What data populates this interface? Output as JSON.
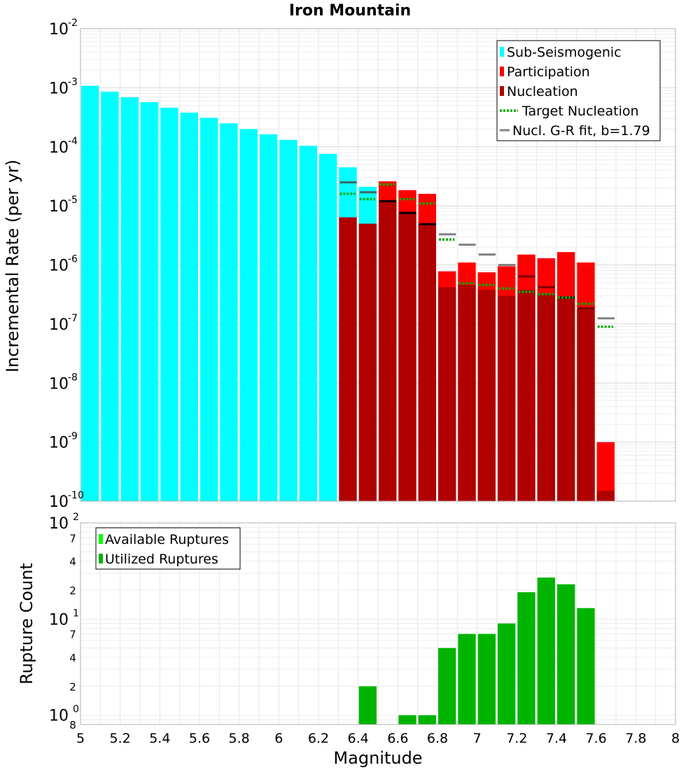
{
  "title": "Iron Mountain",
  "colors": {
    "sub": "#00ffff",
    "participation": "#ff0000",
    "nucleation": "#b00000",
    "target": "#00aa00",
    "gr_fit": "#808080",
    "gr_fit_dark": "#000000",
    "available": "#00ff00",
    "utilized": "#00b400",
    "grid": "#e6e6e6"
  },
  "chart_data": [
    {
      "type": "bar",
      "name": "rates",
      "ylabel": "Incremental Rate (per yr)",
      "xlabel": "Magnitude",
      "yscale": "log",
      "ylim": [
        1e-10,
        0.01
      ],
      "xlim": [
        5,
        8
      ],
      "bin_width": 0.1,
      "y_ticks": [
        {
          "value": 0.01,
          "base": "10",
          "exp": "-2"
        },
        {
          "value": 0.001,
          "base": "10",
          "exp": "-3"
        },
        {
          "value": 0.0001,
          "base": "10",
          "exp": "-4"
        },
        {
          "value": 1e-05,
          "base": "10",
          "exp": "-5"
        },
        {
          "value": 1e-06,
          "base": "10",
          "exp": "-6"
        },
        {
          "value": 1e-07,
          "base": "10",
          "exp": "-7"
        },
        {
          "value": 1e-08,
          "base": "10",
          "exp": "-8"
        },
        {
          "value": 1e-09,
          "base": "10",
          "exp": "-9"
        },
        {
          "value": 1e-10,
          "base": "10",
          "exp": "-10"
        }
      ],
      "legend": [
        {
          "label": "Sub-Seismogenic",
          "kind": "box",
          "key": "sub"
        },
        {
          "label": "Participation",
          "kind": "box",
          "key": "participation"
        },
        {
          "label": "Nucleation",
          "kind": "box",
          "key": "nucleation"
        },
        {
          "label": "Target Nucleation",
          "kind": "dotted",
          "key": "target"
        },
        {
          "label": "Nucl. G-R fit, b=1.79",
          "kind": "line",
          "key": "gr_fit"
        }
      ],
      "sub_seismogenic": {
        "x": [
          5.05,
          5.15,
          5.25,
          5.35,
          5.45,
          5.55,
          5.65,
          5.75,
          5.85,
          5.95,
          6.05,
          6.15,
          6.25,
          6.35,
          6.45
        ],
        "values": [
          0.00108,
          0.00086,
          0.00069,
          0.00057,
          0.00046,
          0.00038,
          0.00031,
          0.00025,
          0.0002,
          0.000163,
          0.000131,
          0.000104,
          7.6e-05,
          4.5e-05,
          2.1e-05
        ]
      },
      "participation": {
        "x": [
          6.55,
          6.65,
          6.75,
          6.85,
          6.95,
          7.05,
          7.15,
          7.25,
          7.35,
          7.45,
          7.55,
          7.65
        ],
        "values": [
          2.6e-05,
          1.85e-05,
          1.6e-05,
          7.8e-07,
          1.1e-06,
          7.5e-07,
          9.5e-07,
          1.5e-06,
          1.3e-06,
          1.65e-06,
          1.1e-06,
          1e-09
        ]
      },
      "nucleation": {
        "x": [
          6.35,
          6.45,
          6.55,
          6.65,
          6.75,
          6.85,
          6.95,
          7.05,
          7.15,
          7.25,
          7.35,
          7.45,
          7.55,
          7.65
        ],
        "values": [
          6.4e-06,
          5e-06,
          1.2e-05,
          7.6e-06,
          4.9e-06,
          4.2e-07,
          4.6e-07,
          3.8e-07,
          3e-07,
          3.8e-07,
          3.2e-07,
          2.8e-07,
          1.8e-07,
          1.5e-10
        ]
      },
      "target_nucleation": {
        "x": [
          6.35,
          6.45,
          6.55,
          6.65,
          6.75,
          6.85,
          6.95,
          7.05,
          7.15,
          7.25,
          7.35,
          7.45,
          7.55,
          7.65
        ],
        "values": [
          1.6e-05,
          1.3e-05,
          2.3e-05,
          1.3e-05,
          1.1e-05,
          2.7e-06,
          4.9e-07,
          4.6e-07,
          4e-07,
          3.5e-07,
          3.2e-07,
          2.8e-07,
          2.2e-07,
          9e-08
        ]
      },
      "gr_fit": {
        "x": [
          6.35,
          6.45,
          6.55,
          6.65,
          6.75,
          6.85,
          6.95,
          7.05,
          7.15,
          7.25,
          7.35,
          7.45,
          7.55,
          7.65
        ],
        "values": [
          2.5e-05,
          1.7e-05,
          1.2e-05,
          7.6e-06,
          4.9e-06,
          3.3e-06,
          2.2e-06,
          1.5e-06,
          1e-06,
          6.4e-07,
          4.2e-07,
          2.8e-07,
          1.85e-07,
          1.25e-07
        ]
      }
    },
    {
      "type": "bar",
      "name": "counts",
      "ylabel": "Rupture Count",
      "xlabel": "Magnitude",
      "yscale": "log",
      "ylim": [
        0.8,
        100
      ],
      "xlim": [
        5,
        8
      ],
      "bin_width": 0.1,
      "x_ticks": [
        "5",
        "5.2",
        "5.4",
        "5.6",
        "5.8",
        "6",
        "6.2",
        "6.4",
        "6.6",
        "6.8",
        "7",
        "7.2",
        "7.4",
        "7.6",
        "7.8",
        "8"
      ],
      "y_major_ticks": [
        {
          "value": 100,
          "base": "10",
          "exp": "2"
        },
        {
          "value": 10,
          "base": "10",
          "exp": "1"
        },
        {
          "value": 1,
          "base": "10",
          "exp": "0"
        }
      ],
      "y_minor_ticks": [
        {
          "value": 70,
          "label": "7"
        },
        {
          "value": 40,
          "label": "4"
        },
        {
          "value": 20,
          "label": "2"
        },
        {
          "value": 7,
          "label": "7"
        },
        {
          "value": 4,
          "label": "4"
        },
        {
          "value": 2,
          "label": "2"
        },
        {
          "value": 0.8,
          "label": "8"
        }
      ],
      "legend": [
        {
          "label": "Available Ruptures",
          "key": "available"
        },
        {
          "label": "Utilized Ruptures",
          "key": "utilized"
        }
      ],
      "utilized": {
        "x": [
          6.45,
          6.65,
          6.75,
          6.85,
          6.95,
          7.05,
          7.15,
          7.25,
          7.35,
          7.45,
          7.55
        ],
        "values": [
          2,
          1,
          1,
          5,
          7,
          7,
          9,
          19,
          27,
          23,
          13
        ]
      }
    }
  ]
}
